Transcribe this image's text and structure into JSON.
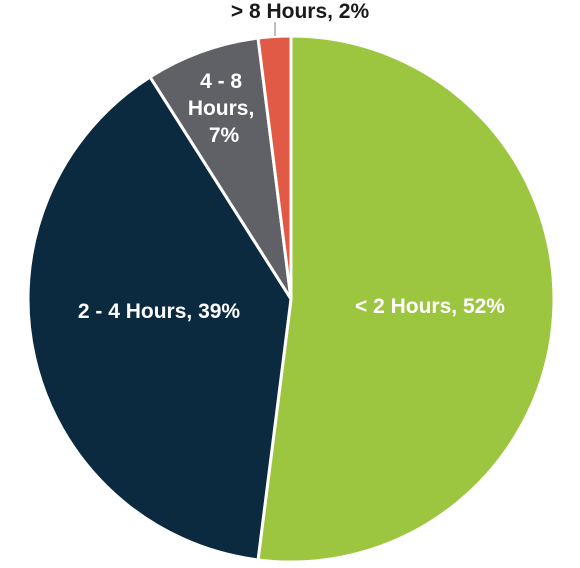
{
  "chart_data": {
    "type": "pie",
    "title": "",
    "start_angle_deg": 0,
    "direction": "clockwise",
    "slices": [
      {
        "label": "< 2 Hours, 52%",
        "category": "< 2 Hours",
        "value": 52,
        "color": "#9dc640"
      },
      {
        "label": "2 - 4 Hours, 39%",
        "category": "2 - 4 Hours",
        "value": 39,
        "color": "#0b2a40"
      },
      {
        "label": "4 - 8 Hours, 7%",
        "category": "4 - 8 Hours",
        "value": 7,
        "color": "#5f6166"
      },
      {
        "label": "> 8 Hours, 2%",
        "category": "> 8 Hours",
        "value": 2,
        "color": "#e05a45"
      }
    ]
  }
}
